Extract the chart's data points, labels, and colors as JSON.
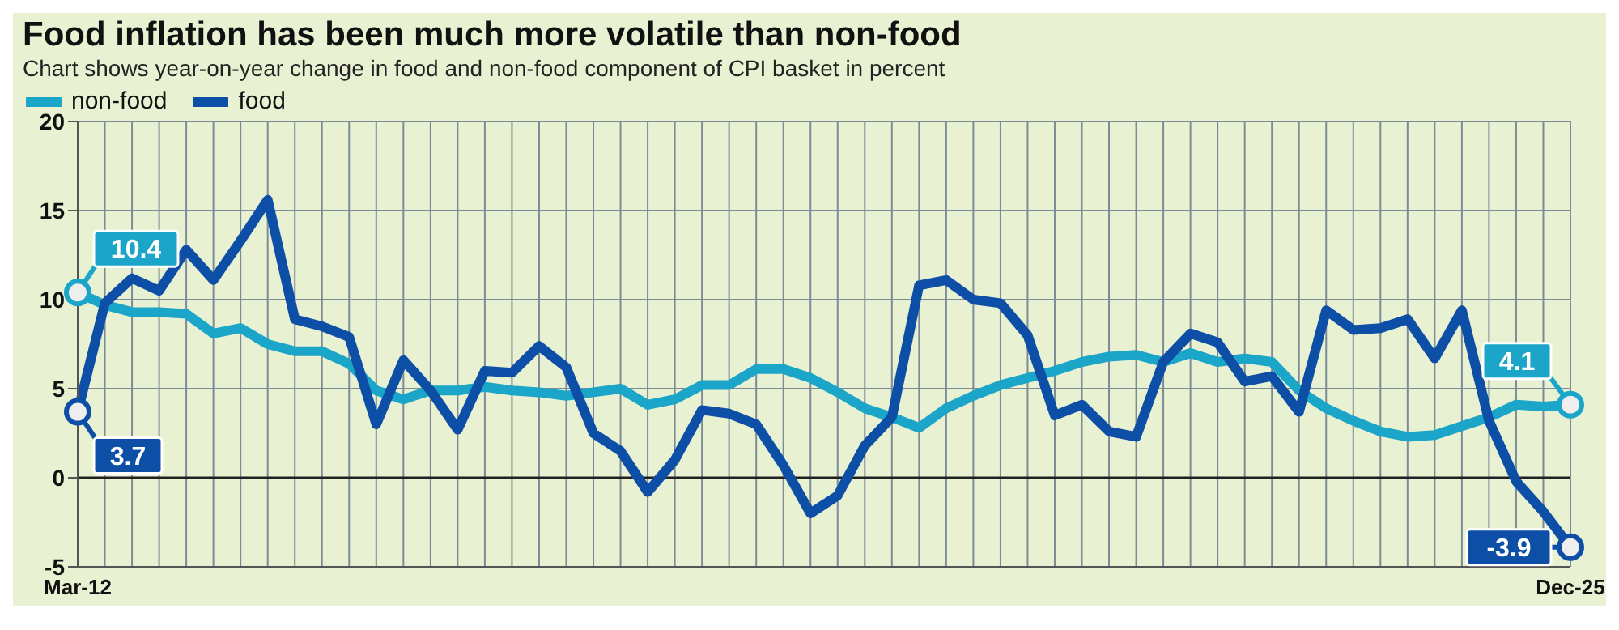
{
  "chart_data": {
    "type": "line",
    "title": "Food inflation has been much more volatile than non-food",
    "subtitle": "Chart shows year-on-year change in food and non-food component of CPI basket in percent",
    "categories": [
      "Mar-12",
      null,
      null,
      null,
      null,
      null,
      null,
      null,
      null,
      null,
      null,
      null,
      null,
      null,
      null,
      null,
      null,
      null,
      null,
      null,
      null,
      null,
      null,
      null,
      null,
      null,
      null,
      null,
      null,
      null,
      null,
      null,
      null,
      null,
      null,
      null,
      null,
      null,
      null,
      null,
      null,
      null,
      null,
      null,
      null,
      null,
      null,
      null,
      null,
      null,
      null,
      null,
      null,
      null,
      null,
      "Dec-25"
    ],
    "series": [
      {
        "name": "non-food",
        "color": "#1ba5c8",
        "values": [
          10.4,
          9.7,
          9.3,
          9.3,
          9.2,
          8.1,
          8.4,
          7.5,
          7.1,
          7.1,
          6.4,
          4.9,
          4.4,
          4.9,
          4.9,
          5.1,
          4.9,
          4.8,
          4.6,
          4.8,
          5.0,
          4.1,
          4.4,
          5.2,
          5.2,
          6.1,
          6.1,
          5.6,
          4.8,
          3.9,
          3.4,
          2.8,
          3.9,
          4.6,
          5.2,
          5.6,
          6.0,
          6.5,
          6.8,
          6.9,
          6.5,
          7.0,
          6.5,
          6.7,
          6.5,
          4.9,
          3.9,
          3.2,
          2.6,
          2.3,
          2.4,
          2.9,
          3.4,
          4.1,
          4.0,
          4.1
        ],
        "value_labels": [
          "10.4",
          null,
          null,
          null,
          null,
          null,
          null,
          null,
          null,
          null,
          null,
          null,
          null,
          null,
          null,
          null,
          null,
          null,
          null,
          null,
          null,
          null,
          null,
          null,
          null,
          null,
          null,
          null,
          null,
          null,
          null,
          null,
          null,
          null,
          null,
          null,
          null,
          null,
          null,
          null,
          null,
          null,
          null,
          null,
          null,
          null,
          null,
          null,
          null,
          null,
          null,
          null,
          null,
          null,
          null,
          "4.1"
        ]
      },
      {
        "name": "food",
        "color": "#0d4ea6",
        "values": [
          3.7,
          9.8,
          11.2,
          10.5,
          12.8,
          11.1,
          13.3,
          15.6,
          8.9,
          8.5,
          7.9,
          3.0,
          6.6,
          4.9,
          2.7,
          6.0,
          5.9,
          7.4,
          6.2,
          2.5,
          1.5,
          -0.8,
          1.0,
          3.8,
          3.6,
          3.0,
          0.7,
          -2.0,
          -1.0,
          1.8,
          3.4,
          10.8,
          11.1,
          10.0,
          9.8,
          8.0,
          3.5,
          4.1,
          2.6,
          2.3,
          6.5,
          8.1,
          7.6,
          5.4,
          5.7,
          3.7,
          9.4,
          8.3,
          8.4,
          8.9,
          6.7,
          9.4,
          3.2,
          -0.2,
          -1.9,
          -3.9
        ],
        "value_labels": [
          "3.7",
          null,
          null,
          null,
          null,
          null,
          null,
          null,
          null,
          null,
          null,
          null,
          null,
          null,
          null,
          null,
          null,
          null,
          null,
          null,
          null,
          null,
          null,
          null,
          null,
          null,
          null,
          null,
          null,
          null,
          null,
          null,
          null,
          null,
          null,
          null,
          null,
          null,
          null,
          null,
          null,
          null,
          null,
          null,
          null,
          null,
          null,
          null,
          null,
          null,
          null,
          null,
          null,
          null,
          null,
          "-3.9"
        ]
      }
    ],
    "ylim": [
      -5,
      20
    ],
    "yticks": [
      -5,
      0,
      5,
      10,
      15,
      20
    ],
    "grid": true,
    "legend": "top left",
    "ref_lines": [
      {
        "axis": "y",
        "value": 0,
        "color": "#222222"
      }
    ]
  }
}
